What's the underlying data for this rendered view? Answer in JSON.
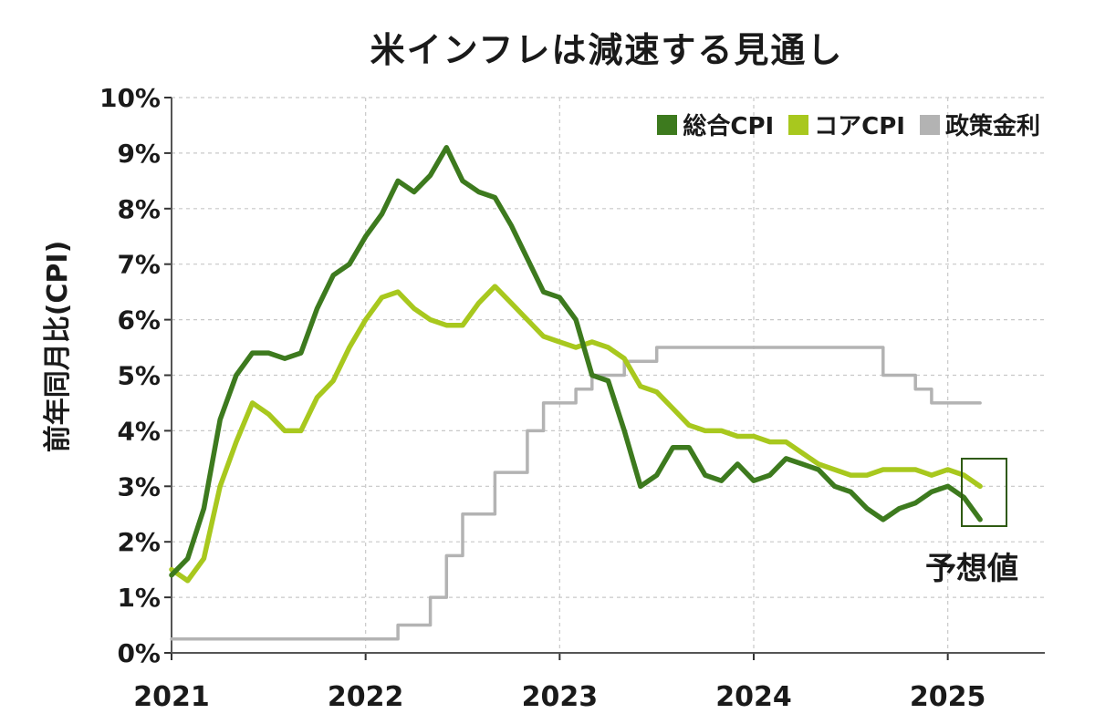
{
  "chart_data": {
    "type": "line",
    "title": "米インフレは減速する見通し",
    "ylabel": "前年同月比(CPI)",
    "xlabel": "",
    "xlim": [
      2021.0,
      2025.5
    ],
    "ylim": [
      0,
      10
    ],
    "x_ticks": [
      "2021",
      "2022",
      "2023",
      "2024",
      "2025"
    ],
    "y_ticks": [
      "0%",
      "1%",
      "2%",
      "3%",
      "4%",
      "5%",
      "6%",
      "7%",
      "8%",
      "9%",
      "10%"
    ],
    "grid": true,
    "legend_position": "top-right",
    "annotation": "予想値",
    "series": [
      {
        "name": "総合CPI",
        "color": "#3d7a1e",
        "x": [
          "2021-01",
          "2021-02",
          "2021-03",
          "2021-04",
          "2021-05",
          "2021-06",
          "2021-07",
          "2021-08",
          "2021-09",
          "2021-10",
          "2021-11",
          "2021-12",
          "2022-01",
          "2022-02",
          "2022-03",
          "2022-04",
          "2022-05",
          "2022-06",
          "2022-07",
          "2022-08",
          "2022-09",
          "2022-10",
          "2022-11",
          "2022-12",
          "2023-01",
          "2023-02",
          "2023-03",
          "2023-04",
          "2023-05",
          "2023-06",
          "2023-07",
          "2023-08",
          "2023-09",
          "2023-10",
          "2023-11",
          "2023-12",
          "2024-01",
          "2024-02",
          "2024-03",
          "2024-04",
          "2024-05",
          "2024-06",
          "2024-07",
          "2024-08",
          "2024-09",
          "2024-10",
          "2024-11",
          "2024-12",
          "2025-01",
          "2025-02",
          "2025-03"
        ],
        "values": [
          1.4,
          1.7,
          2.6,
          4.2,
          5.0,
          5.4,
          5.4,
          5.3,
          5.4,
          6.2,
          6.8,
          7.0,
          7.5,
          7.9,
          8.5,
          8.3,
          8.6,
          9.1,
          8.5,
          8.3,
          8.2,
          7.7,
          7.1,
          6.5,
          6.4,
          6.0,
          5.0,
          4.9,
          4.0,
          3.0,
          3.2,
          3.7,
          3.7,
          3.2,
          3.1,
          3.4,
          3.1,
          3.2,
          3.5,
          3.4,
          3.3,
          3.0,
          2.9,
          2.6,
          2.4,
          2.6,
          2.7,
          2.9,
          3.0,
          2.8,
          2.4
        ]
      },
      {
        "name": "コアCPI",
        "color": "#a8c81e",
        "x": [
          "2021-01",
          "2021-02",
          "2021-03",
          "2021-04",
          "2021-05",
          "2021-06",
          "2021-07",
          "2021-08",
          "2021-09",
          "2021-10",
          "2021-11",
          "2021-12",
          "2022-01",
          "2022-02",
          "2022-03",
          "2022-04",
          "2022-05",
          "2022-06",
          "2022-07",
          "2022-08",
          "2022-09",
          "2022-10",
          "2022-11",
          "2022-12",
          "2023-01",
          "2023-02",
          "2023-03",
          "2023-04",
          "2023-05",
          "2023-06",
          "2023-07",
          "2023-08",
          "2023-09",
          "2023-10",
          "2023-11",
          "2023-12",
          "2024-01",
          "2024-02",
          "2024-03",
          "2024-04",
          "2024-05",
          "2024-06",
          "2024-07",
          "2024-08",
          "2024-09",
          "2024-10",
          "2024-11",
          "2024-12",
          "2025-01",
          "2025-02",
          "2025-03"
        ],
        "values": [
          1.5,
          1.3,
          1.7,
          3.0,
          3.8,
          4.5,
          4.3,
          4.0,
          4.0,
          4.6,
          4.9,
          5.5,
          6.0,
          6.4,
          6.5,
          6.2,
          6.0,
          5.9,
          5.9,
          6.3,
          6.6,
          6.3,
          6.0,
          5.7,
          5.6,
          5.5,
          5.6,
          5.5,
          5.3,
          4.8,
          4.7,
          4.4,
          4.1,
          4.0,
          4.0,
          3.9,
          3.9,
          3.8,
          3.8,
          3.6,
          3.4,
          3.3,
          3.2,
          3.2,
          3.3,
          3.3,
          3.3,
          3.2,
          3.3,
          3.2,
          3.0
        ]
      },
      {
        "name": "政策金利",
        "color": "#b3b3b3",
        "x": [
          "2021-01",
          "2022-03",
          "2022-05",
          "2022-06",
          "2022-07",
          "2022-09",
          "2022-11",
          "2022-12",
          "2023-02",
          "2023-03",
          "2023-05",
          "2023-07",
          "2024-09",
          "2024-11",
          "2024-12",
          "2025-03"
        ],
        "values": [
          0.25,
          0.5,
          1.0,
          1.75,
          2.5,
          3.25,
          4.0,
          4.5,
          4.75,
          5.0,
          5.25,
          5.5,
          5.0,
          4.75,
          4.5,
          4.5
        ]
      }
    ]
  }
}
